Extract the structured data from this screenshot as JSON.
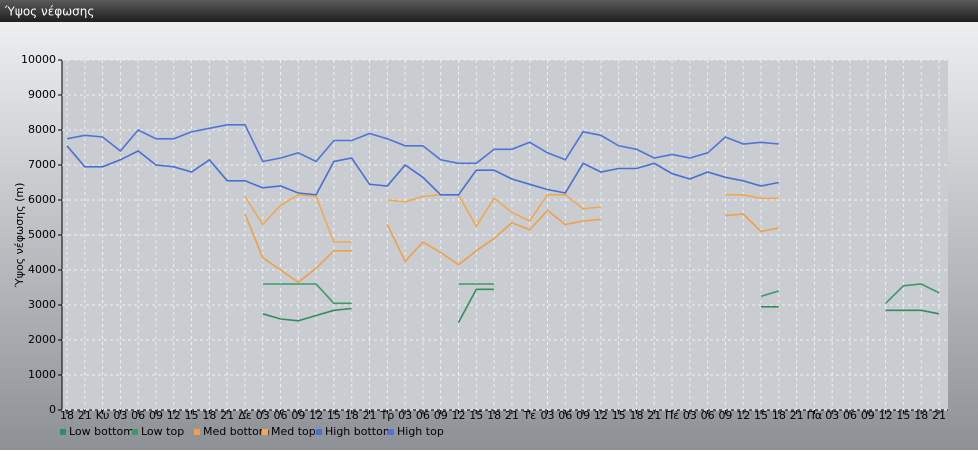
{
  "window_title": "Ύψος νέφωσης",
  "chart_data": {
    "type": "line",
    "ylabel": "Ύψος νέφωσης (m)",
    "categories": [
      "18",
      "21",
      "Κυ",
      "03",
      "06",
      "09",
      "12",
      "15",
      "18",
      "21",
      "Δε",
      "03",
      "06",
      "09",
      "12",
      "15",
      "18",
      "21",
      "Τρ",
      "03",
      "06",
      "09",
      "12",
      "15",
      "18",
      "21",
      "Τε",
      "03",
      "06",
      "09",
      "12",
      "15",
      "18",
      "21",
      "Πέ",
      "03",
      "06",
      "09",
      "12",
      "15",
      "18",
      "21",
      "Πα",
      "03",
      "06",
      "09",
      "12",
      "15",
      "18",
      "21"
    ],
    "ylim": [
      0,
      10000
    ],
    "yticks": [
      0,
      1000,
      2000,
      3000,
      4000,
      5000,
      6000,
      7000,
      8000,
      9000,
      10000
    ],
    "grid": true,
    "legend": "bottom",
    "series": [
      {
        "name": "Low bottom",
        "color": "#2f8f5f",
        "values": [
          null,
          null,
          null,
          null,
          null,
          null,
          null,
          null,
          null,
          null,
          null,
          2750,
          2600,
          2550,
          2700,
          2850,
          2900,
          null,
          null,
          null,
          null,
          null,
          2500,
          3450,
          3450,
          null,
          null,
          null,
          null,
          null,
          null,
          null,
          null,
          null,
          null,
          null,
          null,
          null,
          null,
          2950,
          2950,
          null,
          null,
          null,
          null,
          null,
          2850,
          2850,
          2850,
          2750
        ]
      },
      {
        "name": "Low top",
        "color": "#3a9a6a",
        "values": [
          null,
          null,
          null,
          null,
          null,
          null,
          null,
          null,
          null,
          null,
          null,
          3600,
          3600,
          3600,
          3600,
          3050,
          3050,
          null,
          null,
          null,
          null,
          null,
          3600,
          3600,
          3600,
          null,
          null,
          null,
          null,
          null,
          null,
          null,
          null,
          null,
          null,
          null,
          null,
          null,
          null,
          3250,
          3400,
          null,
          null,
          null,
          null,
          null,
          3050,
          3550,
          3600,
          3350
        ]
      },
      {
        "name": "Med bottom",
        "color": "#f0a048",
        "values": [
          null,
          null,
          null,
          null,
          null,
          null,
          null,
          null,
          null,
          null,
          5600,
          4350,
          4000,
          3650,
          4050,
          4550,
          4550,
          null,
          5300,
          4250,
          4800,
          4500,
          4150,
          4550,
          4900,
          5350,
          5150,
          5700,
          5300,
          5400,
          5450,
          null,
          null,
          null,
          null,
          null,
          null,
          5550,
          5600,
          5100,
          5200,
          null,
          null,
          null,
          null,
          null,
          null,
          null,
          null,
          null
        ]
      },
      {
        "name": "Med top",
        "color": "#f2a850",
        "values": [
          null,
          null,
          null,
          null,
          null,
          null,
          null,
          null,
          null,
          null,
          6100,
          5300,
          5850,
          6150,
          6100,
          4800,
          4800,
          null,
          6000,
          5950,
          6100,
          6150,
          6150,
          5250,
          6050,
          5650,
          5400,
          6150,
          6150,
          5750,
          5800,
          null,
          null,
          null,
          null,
          null,
          null,
          6150,
          6150,
          6050,
          6050,
          null,
          null,
          null,
          null,
          null,
          null,
          null,
          null,
          null
        ]
      },
      {
        "name": "High bottom",
        "color": "#4a6fd4",
        "values": [
          7550,
          6950,
          6950,
          7150,
          7400,
          7000,
          6950,
          6800,
          7150,
          6550,
          6550,
          6350,
          6400,
          6200,
          6150,
          7100,
          7200,
          6450,
          6400,
          7000,
          6650,
          6150,
          6150,
          6850,
          6850,
          6600,
          6450,
          6300,
          6200,
          7050,
          6800,
          6900,
          6900,
          7050,
          6750,
          6600,
          6800,
          6650,
          6550,
          6400,
          6500,
          null,
          null,
          null,
          null,
          null,
          null,
          null,
          null,
          null
        ]
      },
      {
        "name": "High top",
        "color": "#4f74d8",
        "values": [
          7750,
          7850,
          7800,
          7400,
          8000,
          7750,
          7750,
          7950,
          8050,
          8150,
          8150,
          7100,
          7200,
          7350,
          7100,
          7700,
          7700,
          7900,
          7750,
          7550,
          7550,
          7150,
          7050,
          7050,
          7450,
          7450,
          7650,
          7350,
          7150,
          7950,
          7850,
          7550,
          7450,
          7200,
          7300,
          7200,
          7350,
          7800,
          7600,
          7650,
          7600,
          null,
          null,
          null,
          null,
          null,
          null,
          null,
          null,
          null
        ]
      }
    ]
  }
}
